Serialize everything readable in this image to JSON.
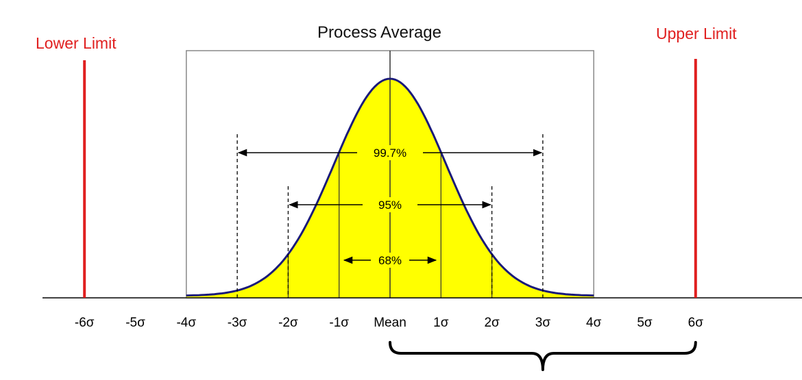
{
  "title": "Process Average",
  "lower_limit": {
    "label": "Lower Limit",
    "at_sigma": -6
  },
  "upper_limit": {
    "label": "Upper Limit",
    "at_sigma": 6
  },
  "colors": {
    "limit": "#e02020",
    "curve_fill": "#ffff00",
    "curve_stroke": "#1a1a7a",
    "frame": "#888888",
    "axis": "#000000"
  },
  "axis_ticks": [
    {
      "sigma": -6,
      "label": "-6σ"
    },
    {
      "sigma": -5,
      "label": "-5σ"
    },
    {
      "sigma": -4,
      "label": "-4σ"
    },
    {
      "sigma": -3,
      "label": "-3σ"
    },
    {
      "sigma": -2,
      "label": "-2σ"
    },
    {
      "sigma": -1,
      "label": "-1σ"
    },
    {
      "sigma": 0,
      "label": "Mean"
    },
    {
      "sigma": 1,
      "label": "1σ"
    },
    {
      "sigma": 2,
      "label": "2σ"
    },
    {
      "sigma": 3,
      "label": "3σ"
    },
    {
      "sigma": 4,
      "label": "4σ"
    },
    {
      "sigma": 5,
      "label": "5σ"
    },
    {
      "sigma": 6,
      "label": "6σ"
    }
  ],
  "coverage_bands": [
    {
      "sigma": 3,
      "label": "99.7%"
    },
    {
      "sigma": 2,
      "label": "95%"
    },
    {
      "sigma": 1,
      "label": "68%"
    }
  ],
  "brace": {
    "from_sigma": 0,
    "to_sigma": 6
  }
}
